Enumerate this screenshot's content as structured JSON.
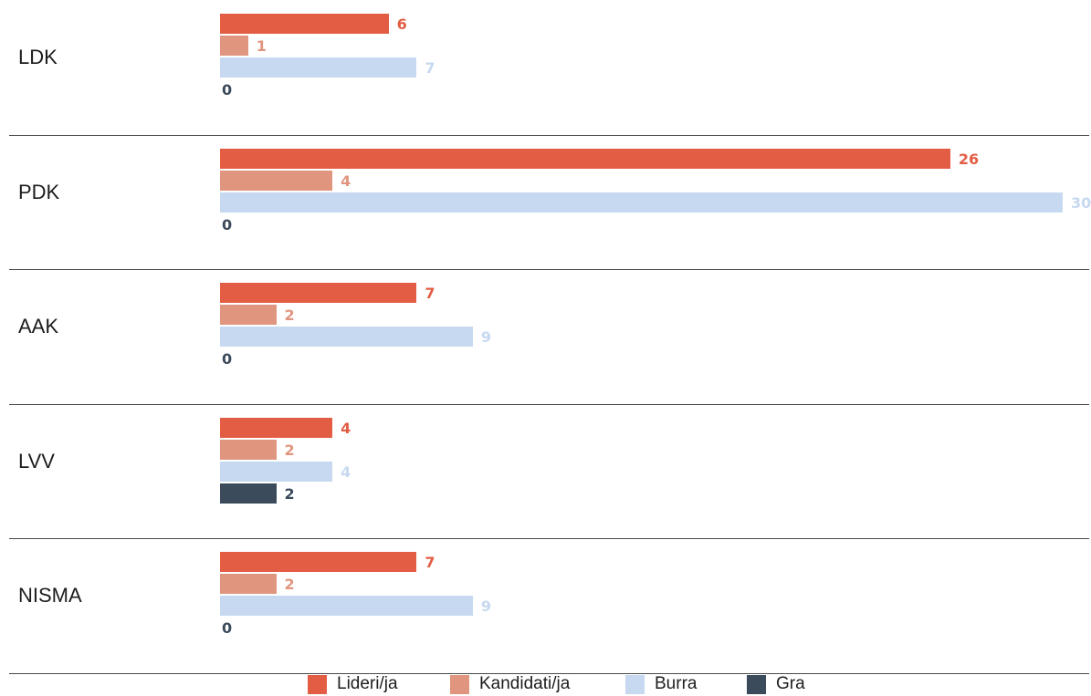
{
  "chart_data": {
    "type": "bar",
    "orientation": "horizontal",
    "categories": [
      "LDK",
      "PDK",
      "AAK",
      "LVV",
      "NISMA"
    ],
    "series": [
      {
        "name": "Lideri/ja",
        "color": "#e35d45",
        "values": [
          6,
          26,
          7,
          4,
          7
        ]
      },
      {
        "name": "Kandidati/ja",
        "color": "#e0957e",
        "values": [
          1,
          4,
          2,
          2,
          2
        ]
      },
      {
        "name": "Burra",
        "color": "#c7d9f0",
        "values": [
          7,
          30,
          9,
          4,
          9
        ]
      },
      {
        "name": "Gra",
        "color": "#3b4b5c",
        "values": [
          0,
          0,
          0,
          2,
          0
        ]
      }
    ],
    "xlim": [
      0,
      30
    ],
    "grid": false,
    "legend_position": "bottom-center",
    "title": "",
    "xlabel": "",
    "ylabel": ""
  }
}
